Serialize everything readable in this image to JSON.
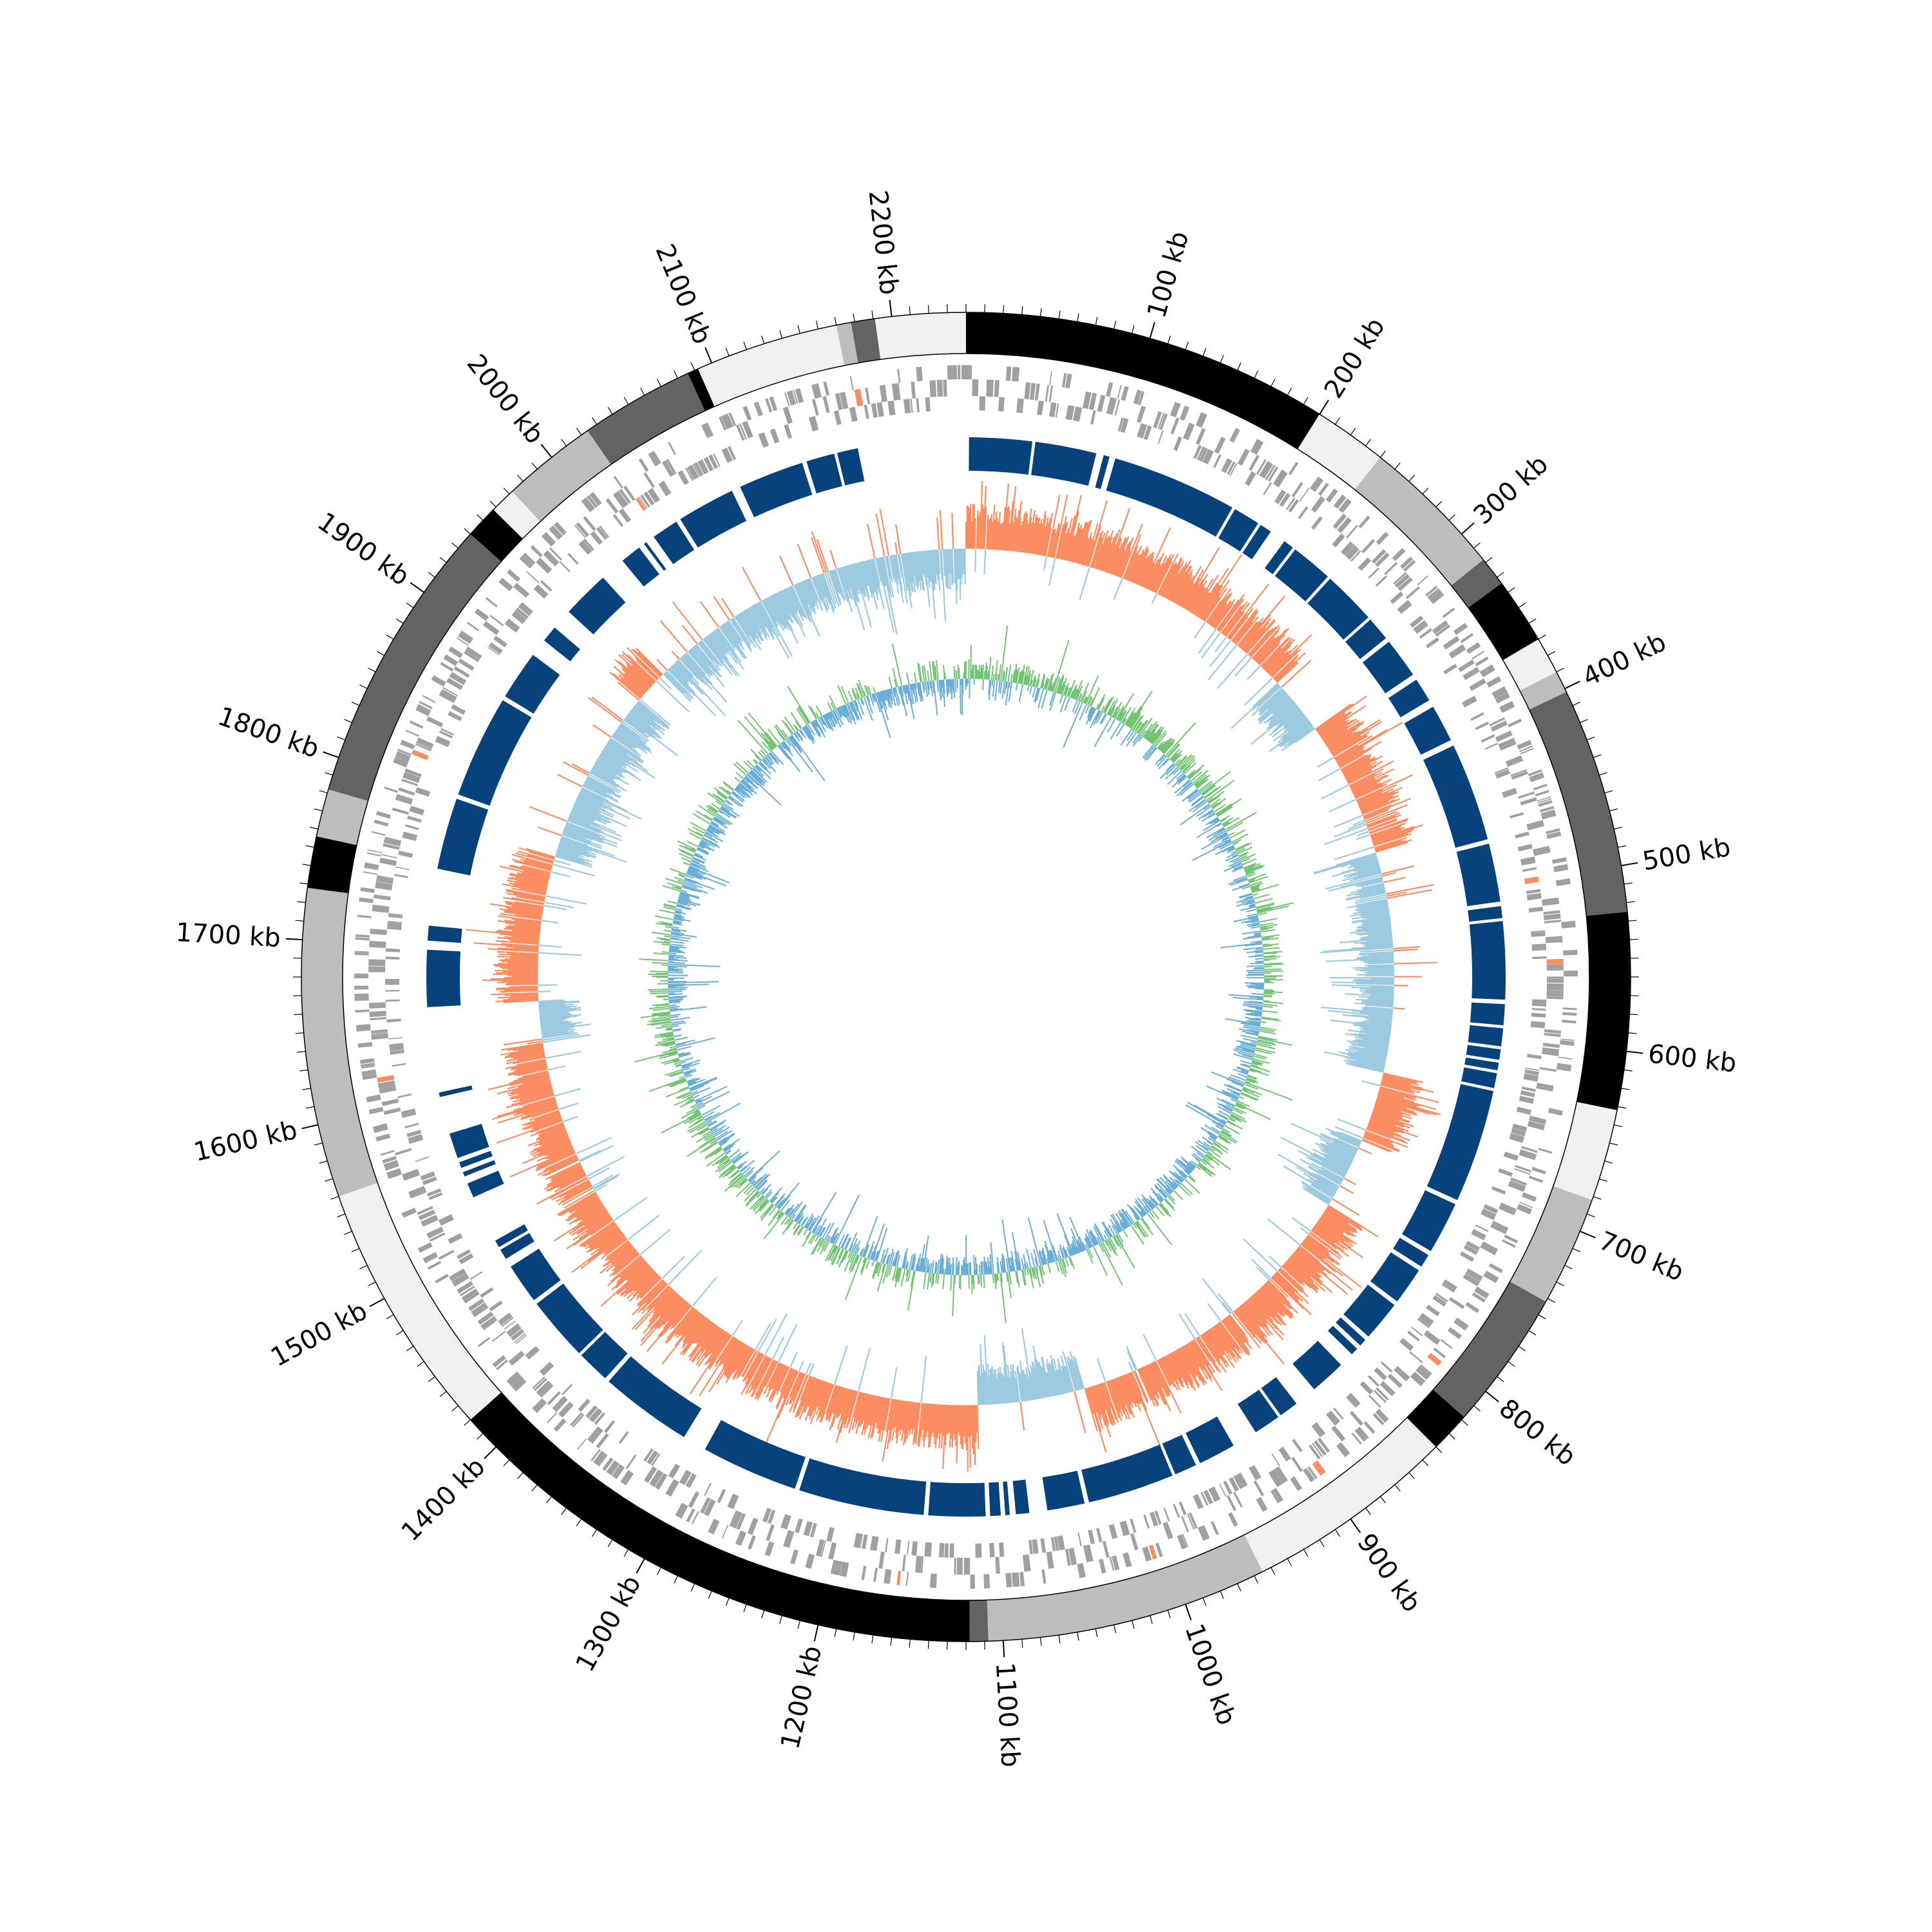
{
  "chart_data": {
    "type": "circular-genome",
    "genome_length_kb": 2240,
    "axis": {
      "unit": "kb",
      "major_tick_labels": [
        "100 kb",
        "200 kb",
        "300 kb",
        "400 kb",
        "500 kb",
        "600 kb",
        "700 kb",
        "800 kb",
        "900 kb",
        "1000 kb",
        "1100 kb",
        "1200 kb",
        "1300 kb",
        "1400 kb",
        "1500 kb",
        "1600 kb",
        "1700 kb",
        "1800 kb",
        "1900 kb",
        "2000 kb",
        "2100 kb",
        "2200 kb"
      ],
      "major_tick_values_kb": [
        100,
        200,
        300,
        400,
        500,
        600,
        700,
        800,
        900,
        1000,
        1100,
        1200,
        1300,
        1400,
        1500,
        1600,
        1700,
        1800,
        1900,
        2000,
        2100,
        2200
      ],
      "minor_tick_interval_kb": 10
    },
    "colors": {
      "outline": "#000000",
      "contig_palette": [
        "#000000",
        "#f0f0f0",
        "#bdbdbd",
        "#636363"
      ],
      "gene": "#a0a0a0",
      "gene_highlight": "#fc8d62",
      "region": "#08427d",
      "gc_skew_positive": "#fc8d62",
      "gc_skew_negative": "#9ecae1",
      "gc_content_positive": "#74c476",
      "gc_content_negative": "#6baed6"
    },
    "contigs_kb": [
      {
        "start": 0,
        "end": 200,
        "shade": "#000000"
      },
      {
        "start": 200,
        "end": 240,
        "shade": "#f0f0f0"
      },
      {
        "start": 240,
        "end": 318,
        "shade": "#bdbdbd"
      },
      {
        "start": 318,
        "end": 334,
        "shade": "#636363"
      },
      {
        "start": 334,
        "end": 370,
        "shade": "#000000"
      },
      {
        "start": 370,
        "end": 390,
        "shade": "#f0f0f0"
      },
      {
        "start": 390,
        "end": 402,
        "shade": "#bdbdbd"
      },
      {
        "start": 402,
        "end": 525,
        "shade": "#636363"
      },
      {
        "start": 525,
        "end": 632,
        "shade": "#000000"
      },
      {
        "start": 632,
        "end": 682,
        "shade": "#f0f0f0"
      },
      {
        "start": 682,
        "end": 742,
        "shade": "#bdbdbd"
      },
      {
        "start": 742,
        "end": 818,
        "shade": "#636363"
      },
      {
        "start": 818,
        "end": 840,
        "shade": "#000000"
      },
      {
        "start": 840,
        "end": 955,
        "shade": "#f0f0f0"
      },
      {
        "start": 955,
        "end": 1108,
        "shade": "#bdbdbd"
      },
      {
        "start": 1108,
        "end": 1118,
        "shade": "#636363"
      },
      {
        "start": 1118,
        "end": 1420,
        "shade": "#000000"
      },
      {
        "start": 1420,
        "end": 1560,
        "shade": "#f0f0f0"
      },
      {
        "start": 1560,
        "end": 1728,
        "shade": "#bdbdbd"
      },
      {
        "start": 1728,
        "end": 1756,
        "shade": "#000000"
      },
      {
        "start": 1756,
        "end": 1782,
        "shade": "#bdbdbd"
      },
      {
        "start": 1782,
        "end": 1940,
        "shade": "#636363"
      },
      {
        "start": 1940,
        "end": 1958,
        "shade": "#000000"
      },
      {
        "start": 1958,
        "end": 1972,
        "shade": "#f0f0f0"
      },
      {
        "start": 1972,
        "end": 2024,
        "shade": "#bdbdbd"
      },
      {
        "start": 2024,
        "end": 2086,
        "shade": "#636363"
      },
      {
        "start": 2086,
        "end": 2092,
        "shade": "#000000"
      },
      {
        "start": 2092,
        "end": 2170,
        "shade": "#f0f0f0"
      },
      {
        "start": 2170,
        "end": 2178,
        "shade": "#bdbdbd"
      },
      {
        "start": 2178,
        "end": 2191,
        "shade": "#636363"
      },
      {
        "start": 2191,
        "end": 2240,
        "shade": "#f0f0f0"
      }
    ],
    "regions_kb": [
      [
        2,
        44
      ],
      [
        46,
        87
      ],
      [
        92,
        96
      ],
      [
        100,
        184
      ],
      [
        186,
        204
      ],
      [
        206,
        214
      ],
      [
        225,
        232
      ],
      [
        234,
        262
      ],
      [
        264,
        300
      ],
      [
        302,
        318
      ],
      [
        321,
        348
      ],
      [
        352,
        368
      ],
      [
        373,
        398
      ],
      [
        402,
        468
      ],
      [
        471,
        510
      ],
      [
        513,
        521
      ],
      [
        523,
        575
      ],
      [
        578,
        592
      ],
      [
        594,
        606
      ],
      [
        608,
        615
      ],
      [
        617,
        622
      ],
      [
        624,
        634
      ],
      [
        636,
        712
      ],
      [
        715,
        750
      ],
      [
        753,
        762
      ],
      [
        765,
        790
      ],
      [
        793,
        820
      ],
      [
        823,
        828
      ],
      [
        831,
        836
      ],
      [
        846,
        870
      ],
      [
        885,
        898
      ],
      [
        900,
        918
      ],
      [
        935,
        960
      ],
      [
        963,
        978
      ],
      [
        980,
        1038
      ],
      [
        1041,
        1066
      ],
      [
        1078,
        1087
      ],
      [
        1091,
        1094
      ],
      [
        1097,
        1104
      ],
      [
        1107,
        1145
      ],
      [
        1148,
        1232
      ],
      [
        1235,
        1300
      ],
      [
        1316,
        1378
      ],
      [
        1381,
        1403
      ],
      [
        1405,
        1448
      ],
      [
        1451,
        1478
      ],
      [
        1484,
        1491
      ],
      [
        1493,
        1498
      ],
      [
        1530,
        1540
      ],
      [
        1545,
        1548
      ],
      [
        1551,
        1555
      ],
      [
        1558,
        1575
      ],
      [
        1600,
        1603
      ],
      [
        1660,
        1698
      ],
      [
        1704,
        1714
      ],
      [
        1752,
        1800
      ],
      [
        1803,
        1872
      ],
      [
        1875,
        1908
      ],
      [
        1920,
        1931
      ],
      [
        1945,
        1977
      ],
      [
        1994,
        2008
      ],
      [
        2012,
        2014
      ],
      [
        2020,
        2038
      ],
      [
        2041,
        2080
      ],
      [
        2086,
        2130
      ],
      [
        2133,
        2152
      ],
      [
        2154,
        2168
      ]
    ],
    "gc_skew": {
      "description": "GC skew track; positive excursions salmon, negative excursions light blue",
      "segments_kb": [
        {
          "start": 0,
          "end": 290,
          "sign": "positive"
        },
        {
          "start": 290,
          "end": 340,
          "sign": "negative"
        },
        {
          "start": 340,
          "end": 455,
          "sign": "positive"
        },
        {
          "start": 455,
          "end": 640,
          "sign": "negative"
        },
        {
          "start": 640,
          "end": 700,
          "sign": "positive"
        },
        {
          "start": 700,
          "end": 760,
          "sign": "negative"
        },
        {
          "start": 760,
          "end": 1020,
          "sign": "positive"
        },
        {
          "start": 1020,
          "end": 1110,
          "sign": "negative"
        },
        {
          "start": 1110,
          "end": 1625,
          "sign": "positive"
        },
        {
          "start": 1625,
          "end": 1660,
          "sign": "negative"
        },
        {
          "start": 1660,
          "end": 1782,
          "sign": "positive"
        },
        {
          "start": 1782,
          "end": 1930,
          "sign": "negative"
        },
        {
          "start": 1930,
          "end": 1960,
          "sign": "positive"
        },
        {
          "start": 1960,
          "end": 2240,
          "sign": "negative"
        }
      ]
    },
    "gc_content": {
      "description": "GC content deviation track; above average green, below average blue",
      "dominant_sign_by_range_kb": [
        {
          "start": 0,
          "end": 300,
          "sign": "positive"
        },
        {
          "start": 300,
          "end": 800,
          "sign": "mixed"
        },
        {
          "start": 800,
          "end": 1200,
          "sign": "negative"
        },
        {
          "start": 1200,
          "end": 1700,
          "sign": "mixed"
        },
        {
          "start": 1700,
          "end": 2240,
          "sign": "negative"
        }
      ]
    }
  }
}
